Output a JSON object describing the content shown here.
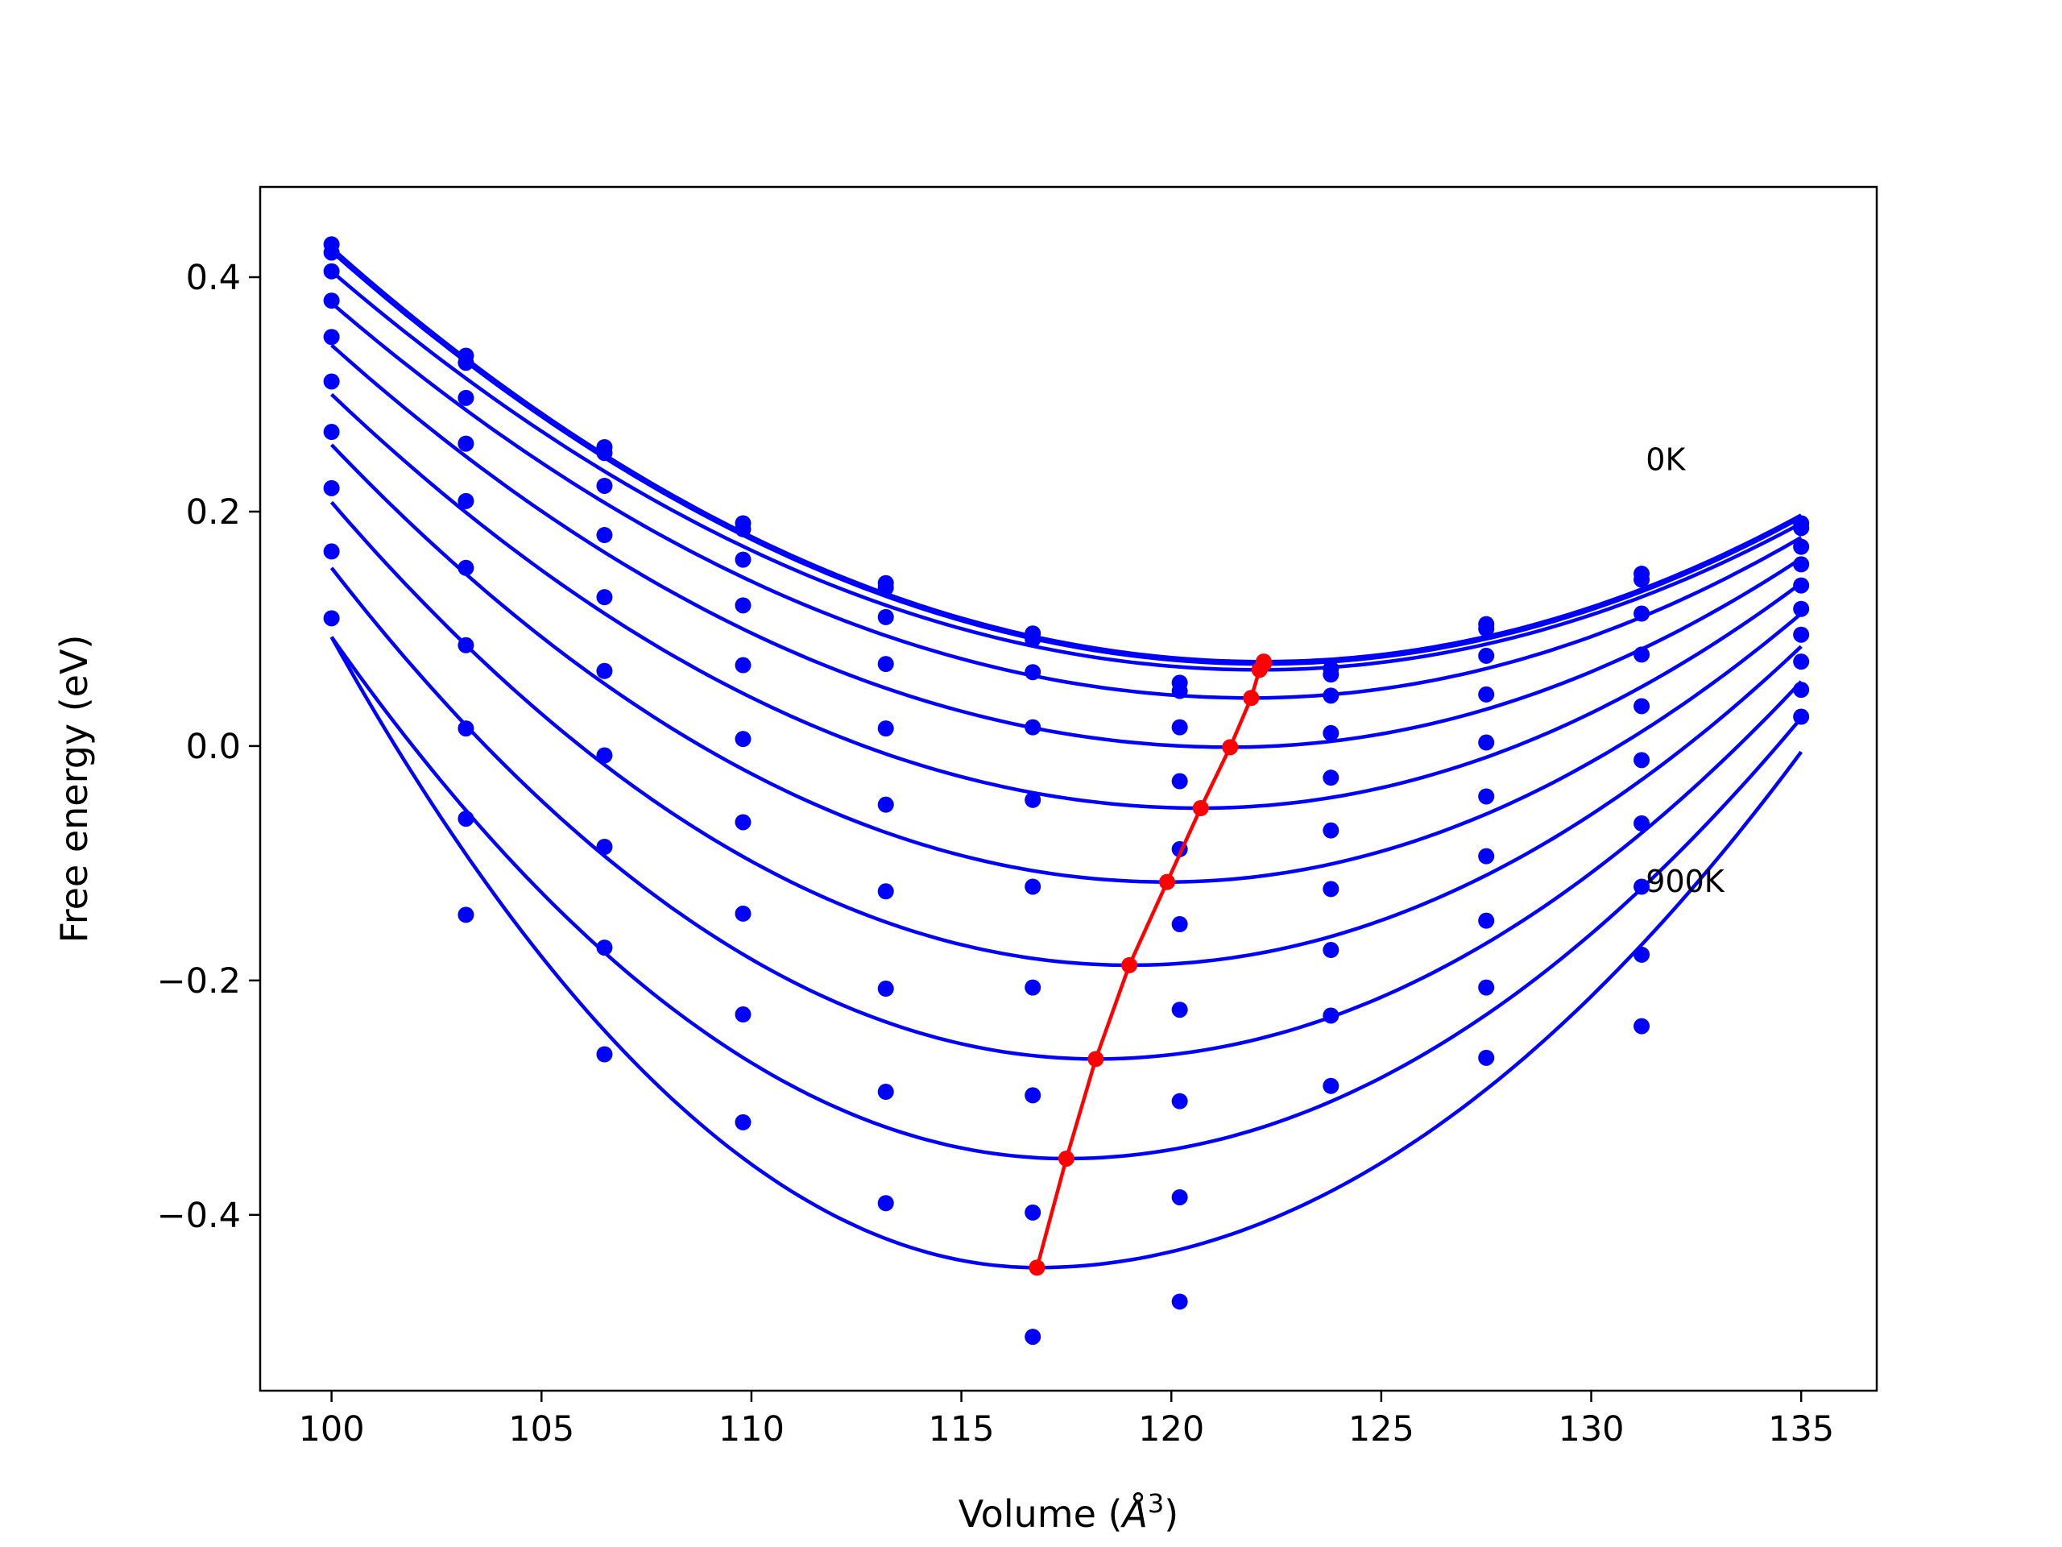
{
  "chart_data": {
    "type": "scatter",
    "xlabel_prefix": "Volume (",
    "xlabel_symbol": "Å",
    "xlabel_sup": "3",
    "xlabel_suffix": ")",
    "ylabel": "Free energy (eV)",
    "xlim": [
      98.3,
      136.8
    ],
    "ylim": [
      -0.55,
      0.477
    ],
    "xticks": [
      100,
      105,
      110,
      115,
      120,
      125,
      130,
      135
    ],
    "xtick_labels": [
      "100",
      "105",
      "110",
      "115",
      "120",
      "125",
      "130",
      "135"
    ],
    "yticks": [
      -0.4,
      -0.2,
      0.0,
      0.2,
      0.4
    ],
    "ytick_labels": [
      "−0.4",
      "−0.2",
      "0.0",
      "0.2",
      "0.4"
    ],
    "grid": false,
    "colors": {
      "curves": "#0000ff",
      "points": "#0000ff",
      "minimum_line": "#ff0000"
    },
    "annotations": [
      {
        "text": "0K",
        "x": 131.3,
        "y": 0.245
      },
      {
        "text": "900K",
        "x": 131.3,
        "y": -0.115
      }
    ],
    "volumes": [
      100.0,
      103.2,
      106.5,
      109.8,
      113.2,
      116.7,
      120.2,
      123.8,
      127.5,
      131.2,
      135.0
    ],
    "series": [
      {
        "min_v": 122.2,
        "min_f": 0.072,
        "left": 0.425,
        "right": 0.197,
        "points": [
          0.428,
          0.333,
          0.255,
          0.19,
          0.139,
          0.096,
          0.054,
          0.066,
          0.104,
          0.147,
          0.19
        ]
      },
      {
        "min_v": 122.2,
        "min_f": 0.07,
        "left": 0.422,
        "right": 0.195,
        "points": [
          0.421,
          0.327,
          0.25,
          0.185,
          0.135,
          0.091,
          0.047,
          0.061,
          0.1,
          0.142,
          0.186
        ]
      },
      {
        "min_v": 122.1,
        "min_f": 0.065,
        "left": 0.405,
        "right": 0.19,
        "points": [
          0.405,
          0.297,
          0.222,
          0.159,
          0.11,
          0.063,
          0.016,
          0.043,
          0.077,
          0.113,
          0.17
        ]
      },
      {
        "min_v": 121.9,
        "min_f": 0.041,
        "left": 0.378,
        "right": 0.178,
        "points": [
          0.38,
          0.258,
          0.18,
          0.12,
          0.07,
          0.016,
          -0.03,
          0.011,
          0.044,
          0.078,
          0.155
        ]
      },
      {
        "min_v": 121.4,
        "min_f": -0.001,
        "left": 0.342,
        "right": 0.16,
        "points": [
          0.349,
          0.209,
          0.127,
          0.069,
          0.015,
          -0.046,
          -0.088,
          -0.027,
          0.003,
          0.034,
          0.137
        ]
      },
      {
        "min_v": 120.7,
        "min_f": -0.053,
        "left": 0.3,
        "right": 0.139,
        "points": [
          0.311,
          0.152,
          0.064,
          0.006,
          -0.05,
          -0.12,
          -0.152,
          -0.072,
          -0.043,
          -0.012,
          0.117
        ]
      },
      {
        "min_v": 119.9,
        "min_f": -0.116,
        "left": 0.257,
        "right": 0.113,
        "points": [
          0.268,
          0.086,
          -0.008,
          -0.065,
          -0.124,
          -0.206,
          -0.225,
          -0.122,
          -0.094,
          -0.066,
          0.095
        ]
      },
      {
        "min_v": 119.0,
        "min_f": -0.187,
        "left": 0.208,
        "right": 0.085,
        "points": [
          0.22,
          0.015,
          -0.086,
          -0.143,
          -0.207,
          -0.298,
          -0.303,
          -0.174,
          -0.149,
          -0.12,
          0.072
        ]
      },
      {
        "min_v": 118.2,
        "min_f": -0.267,
        "left": 0.152,
        "right": 0.055,
        "points": [
          0.166,
          -0.062,
          -0.172,
          -0.229,
          -0.295,
          -0.398,
          -0.385,
          -0.23,
          -0.206,
          -0.178,
          0.048
        ]
      },
      {
        "min_v": 117.5,
        "min_f": -0.352,
        "left": 0.093,
        "right": 0.024,
        "points": [
          0.109,
          -0.144,
          -0.263,
          -0.321,
          -0.39,
          -0.504,
          -0.474,
          -0.29,
          -0.266,
          -0.239,
          0.025
        ]
      },
      {
        "min_v": 116.8,
        "min_f": -0.445,
        "left": 0.093,
        "right": -0.005,
        "points": []
      }
    ],
    "minimum_line": {
      "x": [
        122.2,
        122.2,
        122.1,
        121.9,
        121.4,
        120.7,
        119.9,
        119.0,
        118.2,
        117.5,
        116.8
      ],
      "y": [
        0.072,
        0.07,
        0.065,
        0.041,
        -0.001,
        -0.053,
        -0.116,
        -0.187,
        -0.267,
        -0.352,
        -0.445
      ]
    }
  }
}
